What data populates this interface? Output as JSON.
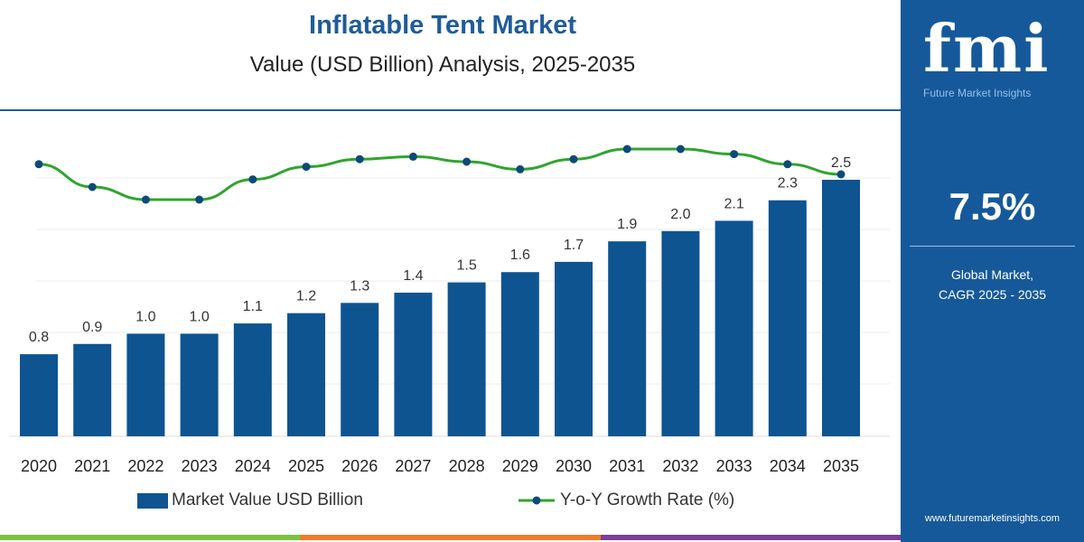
{
  "header": {
    "title": "Inflatable Tent Market",
    "subtitle": "Value (USD Billion) Analysis, 2025-2035"
  },
  "panel": {
    "logo_text": "fmi",
    "logo_tagline": "Future Market Insights",
    "cagr_value": "7.5%",
    "cagr_label_1": "Global Market,",
    "cagr_label_2": "CAGR 2025 - 2035",
    "url": "www.futuremarketinsights.com"
  },
  "colors": {
    "bar": "#0d5491",
    "line": "#2fa52f",
    "marker": "#0d4a78",
    "panel": "#16599a",
    "bottom_strip": [
      "#7cc242",
      "#f07b2b",
      "#7a3f96"
    ]
  },
  "chart_data": {
    "type": "bar+line",
    "categories": [
      "2020",
      "2021",
      "2022",
      "2023",
      "2024",
      "2025",
      "2026",
      "2027",
      "2028",
      "2029",
      "2030",
      "2031",
      "2032",
      "2033",
      "2034",
      "2035"
    ],
    "series": [
      {
        "name": "Market Value USD Billion",
        "type": "bar",
        "values": [
          0.8,
          0.9,
          1.0,
          1.0,
          1.1,
          1.2,
          1.3,
          1.4,
          1.5,
          1.6,
          1.7,
          1.9,
          2.0,
          2.1,
          2.3,
          2.5
        ],
        "labels": [
          "0.8",
          "0.9",
          "1.0",
          "1.0",
          "1.1",
          "1.2",
          "1.3",
          "1.4",
          "1.5",
          "1.6",
          "1.7",
          "1.9",
          "2.0",
          "2.1",
          "2.3",
          "2.5"
        ]
      },
      {
        "name": "Y-o-Y Growth Rate (%)",
        "type": "line",
        "values": [
          7.9,
          7.0,
          6.5,
          6.5,
          7.3,
          7.8,
          8.1,
          8.2,
          8.0,
          7.7,
          8.1,
          8.5,
          8.5,
          8.3,
          7.9,
          7.5
        ]
      }
    ],
    "ylim": [
      0,
      2.5
    ],
    "grid": true,
    "legend": "bottom"
  }
}
